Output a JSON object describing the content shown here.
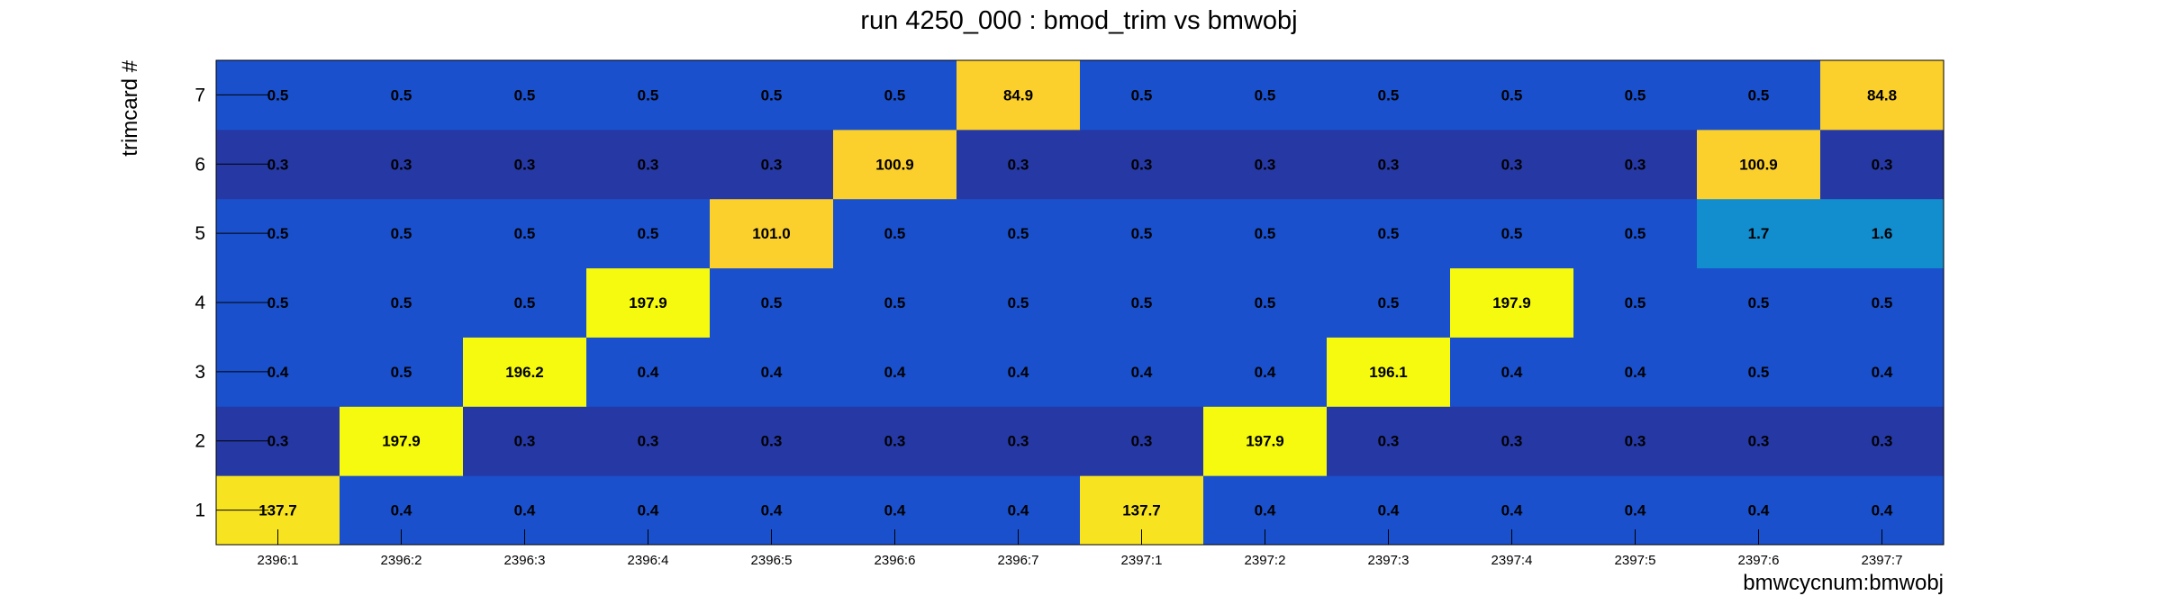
{
  "chart_data": {
    "type": "heatmap",
    "title": "run 4250_000 : bmod_trim vs bmwobj",
    "xlabel": "bmwcycnum:bmwobj",
    "ylabel": "trimcard #",
    "x_categories": [
      "2396:1",
      "2396:2",
      "2396:3",
      "2396:4",
      "2396:5",
      "2396:6",
      "2396:7",
      "2397:1",
      "2397:2",
      "2397:3",
      "2397:4",
      "2397:5",
      "2397:6",
      "2397:7"
    ],
    "y_categories": [
      "1",
      "2",
      "3",
      "4",
      "5",
      "6",
      "7"
    ],
    "values": [
      [
        137.7,
        0.4,
        0.4,
        0.4,
        0.4,
        0.4,
        0.4,
        137.7,
        0.4,
        0.4,
        0.4,
        0.4,
        0.4,
        0.4
      ],
      [
        0.3,
        197.9,
        0.3,
        0.3,
        0.3,
        0.3,
        0.3,
        0.3,
        197.9,
        0.3,
        0.3,
        0.3,
        0.3,
        0.3
      ],
      [
        0.4,
        0.5,
        196.2,
        0.4,
        0.4,
        0.4,
        0.4,
        0.4,
        0.4,
        196.1,
        0.4,
        0.4,
        0.5,
        0.4
      ],
      [
        0.5,
        0.5,
        0.5,
        197.9,
        0.5,
        0.5,
        0.5,
        0.5,
        0.5,
        0.5,
        197.9,
        0.5,
        0.5,
        0.5
      ],
      [
        0.5,
        0.5,
        0.5,
        0.5,
        101.0,
        0.5,
        0.5,
        0.5,
        0.5,
        0.5,
        0.5,
        0.5,
        1.7,
        1.6
      ],
      [
        0.3,
        0.3,
        0.3,
        0.3,
        0.3,
        100.9,
        0.3,
        0.3,
        0.3,
        0.3,
        0.3,
        0.3,
        100.9,
        0.3
      ],
      [
        0.5,
        0.5,
        0.5,
        0.5,
        0.5,
        0.5,
        84.9,
        0.5,
        0.5,
        0.5,
        0.5,
        0.5,
        0.5,
        84.8
      ]
    ],
    "value_labels": [
      [
        "137.7",
        "0.4",
        "0.4",
        "0.4",
        "0.4",
        "0.4",
        "0.4",
        "137.7",
        "0.4",
        "0.4",
        "0.4",
        "0.4",
        "0.4",
        "0.4"
      ],
      [
        "0.3",
        "197.9",
        "0.3",
        "0.3",
        "0.3",
        "0.3",
        "0.3",
        "0.3",
        "197.9",
        "0.3",
        "0.3",
        "0.3",
        "0.3",
        "0.3"
      ],
      [
        "0.4",
        "0.5",
        "196.2",
        "0.4",
        "0.4",
        "0.4",
        "0.4",
        "0.4",
        "0.4",
        "196.1",
        "0.4",
        "0.4",
        "0.5",
        "0.4"
      ],
      [
        "0.5",
        "0.5",
        "0.5",
        "197.9",
        "0.5",
        "0.5",
        "0.5",
        "0.5",
        "0.5",
        "0.5",
        "197.9",
        "0.5",
        "0.5",
        "0.5"
      ],
      [
        "0.5",
        "0.5",
        "0.5",
        "0.5",
        "101.0",
        "0.5",
        "0.5",
        "0.5",
        "0.5",
        "0.5",
        "0.5",
        "0.5",
        "1.7",
        "1.6"
      ],
      [
        "0.3",
        "0.3",
        "0.3",
        "0.3",
        "0.3",
        "100.9",
        "0.3",
        "0.3",
        "0.3",
        "0.3",
        "0.3",
        "0.3",
        "100.9",
        "0.3"
      ],
      [
        "0.5",
        "0.5",
        "0.5",
        "0.5",
        "0.5",
        "0.5",
        "84.9",
        "0.5",
        "0.5",
        "0.5",
        "0.5",
        "0.5",
        "0.5",
        "84.8"
      ]
    ],
    "colors": {
      "low_0.3": "#2538a4",
      "low_0.4_0.5": "#1a50cc",
      "mid_1.6_1.7": "#128ecf",
      "high_84_101": "#fbcf2c",
      "high_137": "#f7e320",
      "high_196_198": "#f6fa0f"
    },
    "grid": false,
    "legend": "none"
  }
}
